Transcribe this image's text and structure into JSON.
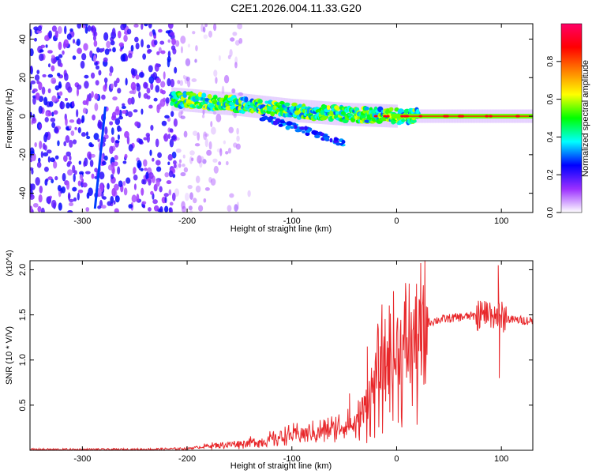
{
  "figure": {
    "title": "C2E1.2026.004.11.33.G20"
  },
  "chart_data": [
    {
      "type": "heatmap",
      "xlabel": "Height of straight line (km)",
      "ylabel": "Frequency (Hz)",
      "xlim": [
        -350,
        130
      ],
      "ylim": [
        -50,
        48
      ],
      "xticks": [
        -300,
        -200,
        -100,
        0,
        100
      ],
      "yticks": [
        -40,
        -20,
        0,
        20,
        40
      ],
      "colorbar": {
        "label": "Normalized spectral amplitude",
        "range": [
          0,
          1
        ],
        "ticks": [
          "0.0",
          "0.2",
          "0.4",
          "0.6",
          "0.8"
        ],
        "tick_values": [
          0.0,
          0.2,
          0.4,
          0.6,
          0.8
        ],
        "colormap": [
          "#ffffff",
          "#9b30ff",
          "#0000ff",
          "#00ffff",
          "#00ff00",
          "#ffff00",
          "#ff8000",
          "#ff0000",
          "#ff0066"
        ]
      },
      "features": {
        "noise_region_x": [
          -350,
          -150
        ],
        "signal_track": {
          "x": [
            -215,
            -150,
            -100,
            -50,
            0,
            130
          ],
          "y": [
            9,
            6,
            3,
            1,
            0,
            0
          ]
        },
        "secondary_streak": {
          "x": [
            -130,
            -50
          ],
          "y": [
            0,
            -14
          ]
        },
        "vertical_streak": {
          "x": [
            -288,
            -278
          ],
          "y": [
            -48,
            5
          ]
        }
      }
    },
    {
      "type": "line",
      "xlabel": "Height of straight line (km)",
      "ylabel": "SNR (10 * V/V)",
      "y_multiplier": "(x10^4)",
      "xlim": [
        -350,
        130
      ],
      "ylim": [
        0,
        2.1
      ],
      "xticks": [
        -300,
        -200,
        -100,
        0,
        100
      ],
      "yticks": [
        0.5,
        1.0,
        1.5,
        2.0
      ],
      "color": "#e8272a",
      "envelope": {
        "x": [
          -350,
          -250,
          -200,
          -180,
          -150,
          -130,
          -100,
          -80,
          -60,
          -50,
          -40,
          -30,
          -20,
          -10,
          0,
          10,
          20,
          30,
          40,
          60,
          80,
          90,
          100,
          110,
          130
        ],
        "y": [
          0.01,
          0.01,
          0.02,
          0.05,
          0.08,
          0.1,
          0.18,
          0.2,
          0.25,
          0.3,
          0.28,
          0.5,
          0.8,
          1.05,
          1.05,
          1.2,
          1.3,
          1.42,
          1.45,
          1.48,
          1.5,
          1.52,
          1.48,
          1.45,
          1.44
        ]
      },
      "peaks": [
        {
          "x": 12,
          "y": 1.82
        },
        {
          "x": 97,
          "y": 2.05
        },
        {
          "x": 98,
          "y": 0.8
        },
        {
          "x": -45,
          "y": 0.63
        },
        {
          "x": -28,
          "y": 1.15
        }
      ]
    }
  ]
}
